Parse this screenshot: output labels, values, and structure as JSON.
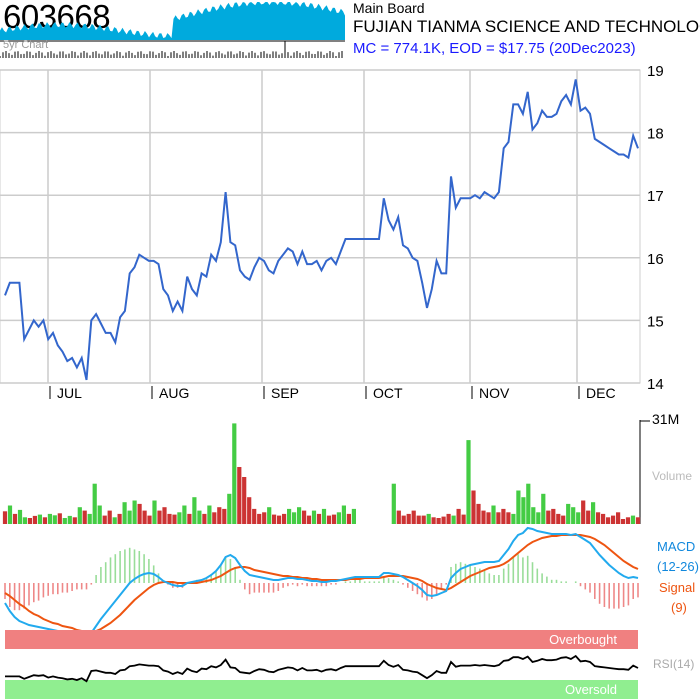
{
  "header": {
    "ticker": "603668",
    "spark_label": "5yr Chart",
    "board": "Main Board",
    "company": "FUJIAN TIANMA SCIENCE AND TECHNOLOGY",
    "mc_line": "MC = 774.1K, EOD = $17.75 (20Dec2023)"
  },
  "colors": {
    "price_line": "#3366cc",
    "vol_up": "#44cc44",
    "vol_down": "#cc3333",
    "macd": "#22aaee",
    "signal": "#ee5511",
    "overbought": "#f08080",
    "oversold": "#90ee90",
    "spark": "#00aadd"
  },
  "panels": {
    "volume_label": "Volume",
    "volume_max_label": "31M",
    "macd_label": "MACD",
    "macd_params": "(12-26)",
    "signal_label": "Signal",
    "signal_params": "(9)",
    "overbought_label": "Overbought",
    "oversold_label": "Oversold",
    "rsi_label": "RSI(14)"
  },
  "chart_data": {
    "type": "line",
    "x_tick_labels": [
      "JUL",
      "AUG",
      "SEP",
      "OCT",
      "NOV",
      "DEC"
    ],
    "y_ticks": [
      14,
      15,
      16,
      17,
      18,
      19
    ],
    "ylim": [
      14,
      19
    ],
    "grid": true,
    "price": [
      15.4,
      15.6,
      15.6,
      15.6,
      14.7,
      14.85,
      15.0,
      14.9,
      15.0,
      14.7,
      14.8,
      14.6,
      14.5,
      14.35,
      14.4,
      14.25,
      14.4,
      14.05,
      15.0,
      15.1,
      14.95,
      14.8,
      14.8,
      14.65,
      15.05,
      15.15,
      15.75,
      15.85,
      16.05,
      16.0,
      15.95,
      15.95,
      15.9,
      15.5,
      15.4,
      15.15,
      15.3,
      15.15,
      15.7,
      15.5,
      15.4,
      15.75,
      15.7,
      16.05,
      15.95,
      16.25,
      17.05,
      16.25,
      16.2,
      15.8,
      15.7,
      15.65,
      15.85,
      16.0,
      15.95,
      15.8,
      15.75,
      15.95,
      16.05,
      16.15,
      16.1,
      15.9,
      16.1,
      15.9,
      15.9,
      15.95,
      15.8,
      15.95,
      16.0,
      15.9,
      16.1,
      16.3,
      16.3,
      16.3,
      16.3,
      16.3,
      16.3,
      16.3,
      16.3,
      16.95,
      16.6,
      16.45,
      16.65,
      16.2,
      16.15,
      16.0,
      15.95,
      15.6,
      15.2,
      15.5,
      15.95,
      15.75,
      15.75,
      17.3,
      16.8,
      16.95,
      16.95,
      16.95,
      17.0,
      16.95,
      17.05,
      17.0,
      16.95,
      17.05,
      17.75,
      17.85,
      18.45,
      18.45,
      18.3,
      18.65,
      18.05,
      18.15,
      18.35,
      18.25,
      18.25,
      18.3,
      18.5,
      18.6,
      18.45,
      18.85,
      18.35,
      18.4,
      18.3,
      17.9,
      17.85,
      17.8,
      17.75,
      17.7,
      17.65,
      17.65,
      17.6,
      17.95,
      17.75
    ],
    "volume_ylim": [
      0,
      31
    ],
    "volume": [
      {
        "v": 3.8,
        "d": 1
      },
      {
        "v": 5.5,
        "d": 0
      },
      {
        "v": 3.0,
        "d": 1
      },
      {
        "v": 4.2,
        "d": 0
      },
      {
        "v": 2.0,
        "d": 0
      },
      {
        "v": 1.8,
        "d": 1
      },
      {
        "v": 2.4,
        "d": 1
      },
      {
        "v": 2.8,
        "d": 0
      },
      {
        "v": 2.0,
        "d": 1
      },
      {
        "v": 3.0,
        "d": 0
      },
      {
        "v": 2.6,
        "d": 0
      },
      {
        "v": 3.2,
        "d": 1
      },
      {
        "v": 1.8,
        "d": 0
      },
      {
        "v": 2.4,
        "d": 0
      },
      {
        "v": 2.0,
        "d": 1
      },
      {
        "v": 5.0,
        "d": 0
      },
      {
        "v": 4.0,
        "d": 1
      },
      {
        "v": 3.0,
        "d": 0
      },
      {
        "v": 12.0,
        "d": 0
      },
      {
        "v": 5.5,
        "d": 0
      },
      {
        "v": 2.5,
        "d": 1
      },
      {
        "v": 4.0,
        "d": 1
      },
      {
        "v": 2.0,
        "d": 0
      },
      {
        "v": 3.0,
        "d": 1
      },
      {
        "v": 6.5,
        "d": 0
      },
      {
        "v": 4.0,
        "d": 0
      },
      {
        "v": 7.0,
        "d": 0
      },
      {
        "v": 6.0,
        "d": 1
      },
      {
        "v": 4.0,
        "d": 1
      },
      {
        "v": 2.5,
        "d": 1
      },
      {
        "v": 7.0,
        "d": 0
      },
      {
        "v": 4.0,
        "d": 1
      },
      {
        "v": 5.0,
        "d": 1
      },
      {
        "v": 3.0,
        "d": 1
      },
      {
        "v": 2.8,
        "d": 1
      },
      {
        "v": 3.5,
        "d": 0
      },
      {
        "v": 5.5,
        "d": 0
      },
      {
        "v": 3.0,
        "d": 1
      },
      {
        "v": 8.0,
        "d": 0
      },
      {
        "v": 4.0,
        "d": 0
      },
      {
        "v": 3.0,
        "d": 1
      },
      {
        "v": 5.5,
        "d": 0
      },
      {
        "v": 3.5,
        "d": 1
      },
      {
        "v": 5.0,
        "d": 1
      },
      {
        "v": 4.5,
        "d": 1
      },
      {
        "v": 9.0,
        "d": 0
      },
      {
        "v": 30.0,
        "d": 0
      },
      {
        "v": 17.0,
        "d": 1
      },
      {
        "v": 14.0,
        "d": 1
      },
      {
        "v": 8.0,
        "d": 1
      },
      {
        "v": 4.5,
        "d": 1
      },
      {
        "v": 3.0,
        "d": 1
      },
      {
        "v": 3.5,
        "d": 1
      },
      {
        "v": 5.0,
        "d": 0
      },
      {
        "v": 2.8,
        "d": 1
      },
      {
        "v": 2.5,
        "d": 1
      },
      {
        "v": 3.0,
        "d": 1
      },
      {
        "v": 4.5,
        "d": 0
      },
      {
        "v": 3.5,
        "d": 0
      },
      {
        "v": 5.0,
        "d": 0
      },
      {
        "v": 4.0,
        "d": 1
      },
      {
        "v": 2.5,
        "d": 1
      },
      {
        "v": 4.0,
        "d": 0
      },
      {
        "v": 3.0,
        "d": 1
      },
      {
        "v": 4.5,
        "d": 0
      },
      {
        "v": 2.5,
        "d": 1
      },
      {
        "v": 2.8,
        "d": 1
      },
      {
        "v": 3.5,
        "d": 0
      },
      {
        "v": 5.5,
        "d": 0
      },
      {
        "v": 3.0,
        "d": 1
      },
      {
        "v": 4.5,
        "d": 0
      },
      {
        "v": 0,
        "d": 0
      },
      {
        "v": 0,
        "d": 0
      },
      {
        "v": 0,
        "d": 0
      },
      {
        "v": 0,
        "d": 0
      },
      {
        "v": 0,
        "d": 0
      },
      {
        "v": 0,
        "d": 0
      },
      {
        "v": 0,
        "d": 0
      },
      {
        "v": 12.0,
        "d": 0
      },
      {
        "v": 4.0,
        "d": 1
      },
      {
        "v": 2.5,
        "d": 1
      },
      {
        "v": 3.0,
        "d": 1
      },
      {
        "v": 4.0,
        "d": 1
      },
      {
        "v": 2.5,
        "d": 1
      },
      {
        "v": 2.5,
        "d": 1
      },
      {
        "v": 3.0,
        "d": 0
      },
      {
        "v": 2.0,
        "d": 1
      },
      {
        "v": 1.8,
        "d": 1
      },
      {
        "v": 2.2,
        "d": 1
      },
      {
        "v": 3.0,
        "d": 1
      },
      {
        "v": 2.5,
        "d": 0
      },
      {
        "v": 4.5,
        "d": 1
      },
      {
        "v": 2.8,
        "d": 1
      },
      {
        "v": 25.0,
        "d": 0
      },
      {
        "v": 10.0,
        "d": 1
      },
      {
        "v": 6.0,
        "d": 1
      },
      {
        "v": 4.0,
        "d": 1
      },
      {
        "v": 3.5,
        "d": 1
      },
      {
        "v": 5.5,
        "d": 0
      },
      {
        "v": 3.5,
        "d": 1
      },
      {
        "v": 4.5,
        "d": 1
      },
      {
        "v": 3.5,
        "d": 1
      },
      {
        "v": 3.0,
        "d": 0
      },
      {
        "v": 10.0,
        "d": 0
      },
      {
        "v": 8.0,
        "d": 0
      },
      {
        "v": 12.0,
        "d": 0
      },
      {
        "v": 5.0,
        "d": 0
      },
      {
        "v": 3.5,
        "d": 0
      },
      {
        "v": 9.0,
        "d": 0
      },
      {
        "v": 4.0,
        "d": 1
      },
      {
        "v": 4.5,
        "d": 1
      },
      {
        "v": 3.0,
        "d": 1
      },
      {
        "v": 2.5,
        "d": 1
      },
      {
        "v": 6.0,
        "d": 0
      },
      {
        "v": 5.0,
        "d": 0
      },
      {
        "v": 3.5,
        "d": 0
      },
      {
        "v": 7.0,
        "d": 1
      },
      {
        "v": 4.0,
        "d": 1
      },
      {
        "v": 6.5,
        "d": 0
      },
      {
        "v": 3.5,
        "d": 1
      },
      {
        "v": 3.0,
        "d": 1
      },
      {
        "v": 2.0,
        "d": 1
      },
      {
        "v": 2.5,
        "d": 1
      },
      {
        "v": 3.5,
        "d": 1
      },
      {
        "v": 1.5,
        "d": 1
      },
      {
        "v": 2.0,
        "d": 1
      },
      {
        "v": 2.5,
        "d": 0
      },
      {
        "v": 2.0,
        "d": 1
      }
    ],
    "macd": [
      -0.2,
      -0.28,
      -0.34,
      -0.38,
      -0.4,
      -0.42,
      -0.43,
      -0.44,
      -0.45,
      -0.46,
      -0.47,
      -0.48,
      -0.49,
      -0.5,
      -0.5,
      -0.51,
      -0.52,
      -0.53,
      -0.5,
      -0.43,
      -0.36,
      -0.3,
      -0.24,
      -0.18,
      -0.12,
      -0.06,
      0.0,
      0.04,
      0.07,
      0.09,
      0.1,
      0.09,
      0.06,
      0.02,
      0.0,
      -0.02,
      -0.03,
      -0.03,
      0.0,
      0.01,
      0.02,
      0.03,
      0.05,
      0.08,
      0.12,
      0.18,
      0.26,
      0.28,
      0.25,
      0.18,
      0.12,
      0.08,
      0.07,
      0.06,
      0.05,
      0.04,
      0.03,
      0.03,
      0.04,
      0.05,
      0.05,
      0.04,
      0.04,
      0.03,
      0.02,
      0.02,
      0.01,
      0.01,
      0.02,
      0.02,
      0.03,
      0.04,
      0.05,
      0.06,
      0.06,
      0.06,
      0.06,
      0.06,
      0.06,
      0.1,
      0.1,
      0.09,
      0.08,
      0.06,
      0.03,
      0.0,
      -0.03,
      -0.07,
      -0.12,
      -0.13,
      -0.12,
      -0.1,
      -0.08,
      0.05,
      0.1,
      0.14,
      0.16,
      0.18,
      0.19,
      0.2,
      0.21,
      0.21,
      0.21,
      0.22,
      0.28,
      0.34,
      0.42,
      0.48,
      0.5,
      0.55,
      0.54,
      0.52,
      0.51,
      0.5,
      0.49,
      0.49,
      0.49,
      0.49,
      0.48,
      0.49,
      0.46,
      0.43,
      0.4,
      0.34,
      0.28,
      0.23,
      0.18,
      0.14,
      0.1,
      0.07,
      0.05,
      0.06,
      0.05
    ],
    "signal": [
      -0.1,
      -0.13,
      -0.17,
      -0.21,
      -0.24,
      -0.28,
      -0.31,
      -0.33,
      -0.36,
      -0.38,
      -0.4,
      -0.41,
      -0.43,
      -0.44,
      -0.45,
      -0.47,
      -0.48,
      -0.49,
      -0.49,
      -0.48,
      -0.46,
      -0.43,
      -0.4,
      -0.36,
      -0.32,
      -0.27,
      -0.22,
      -0.17,
      -0.13,
      -0.09,
      -0.05,
      -0.02,
      0.0,
      0.01,
      0.01,
      0.01,
      0.0,
      0.0,
      0.0,
      0.0,
      0.0,
      0.01,
      0.02,
      0.03,
      0.05,
      0.07,
      0.1,
      0.13,
      0.15,
      0.16,
      0.16,
      0.15,
      0.13,
      0.12,
      0.11,
      0.1,
      0.09,
      0.08,
      0.07,
      0.07,
      0.06,
      0.06,
      0.05,
      0.05,
      0.04,
      0.04,
      0.03,
      0.03,
      0.03,
      0.03,
      0.03,
      0.03,
      0.04,
      0.04,
      0.04,
      0.05,
      0.05,
      0.05,
      0.05,
      0.06,
      0.07,
      0.07,
      0.07,
      0.07,
      0.06,
      0.05,
      0.04,
      0.02,
      -0.01,
      -0.03,
      -0.05,
      -0.06,
      -0.07,
      -0.05,
      -0.02,
      0.01,
      0.04,
      0.07,
      0.09,
      0.11,
      0.13,
      0.15,
      0.16,
      0.17,
      0.19,
      0.22,
      0.26,
      0.3,
      0.34,
      0.38,
      0.41,
      0.43,
      0.45,
      0.46,
      0.47,
      0.47,
      0.48,
      0.48,
      0.48,
      0.48,
      0.48,
      0.47,
      0.46,
      0.44,
      0.41,
      0.38,
      0.34,
      0.3,
      0.26,
      0.22,
      0.19,
      0.16,
      0.14
    ],
    "rsi": [
      46,
      46,
      46,
      46,
      42,
      45,
      48,
      47,
      48,
      44,
      46,
      44,
      43,
      41,
      42,
      40,
      43,
      38,
      55,
      56,
      54,
      52,
      52,
      50,
      56,
      57,
      63,
      64,
      66,
      65,
      64,
      64,
      63,
      56,
      54,
      50,
      53,
      50,
      59,
      55,
      53,
      59,
      58,
      63,
      61,
      65,
      74,
      61,
      60,
      53,
      52,
      51,
      55,
      58,
      57,
      54,
      53,
      57,
      59,
      61,
      60,
      56,
      60,
      56,
      56,
      57,
      54,
      57,
      58,
      56,
      60,
      63,
      63,
      63,
      63,
      63,
      63,
      63,
      63,
      72,
      65,
      62,
      65,
      57,
      56,
      54,
      53,
      48,
      43,
      48,
      55,
      52,
      52,
      70,
      62,
      64,
      64,
      64,
      65,
      64,
      65,
      64,
      63,
      65,
      72,
      73,
      78,
      78,
      75,
      79,
      70,
      72,
      75,
      73,
      73,
      74,
      77,
      78,
      75,
      80,
      71,
      72,
      70,
      63,
      62,
      61,
      60,
      59,
      58,
      58,
      57,
      64,
      60
    ]
  }
}
